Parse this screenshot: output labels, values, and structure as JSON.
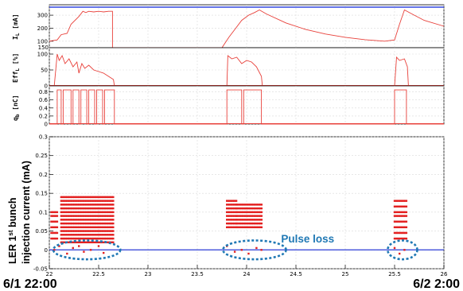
{
  "chart_data": [
    {
      "type": "line",
      "title": "",
      "ylabel": "I_L [mA]",
      "ylabel_main": "I",
      "ylabel_sub": "L",
      "ylabel_unit": " [mA]",
      "xlim": [
        22,
        26
      ],
      "ylim": [
        50,
        380
      ],
      "yticks": [
        100,
        200,
        300
      ],
      "ytick_labels": [
        "100",
        "200",
        "300"
      ],
      "bottom_label": "150",
      "series": [
        {
          "color": "#e8403a",
          "x": [
            22.0,
            22.08,
            22.12,
            22.18,
            22.22,
            22.3,
            22.34,
            22.37,
            22.4,
            22.45,
            22.5,
            22.55,
            22.6,
            22.64,
            22.64,
            22.8,
            23.0,
            23.5,
            23.75,
            23.82,
            23.88,
            23.95,
            24.02,
            24.08,
            24.13,
            24.2,
            24.4,
            24.6,
            24.8,
            25.0,
            25.2,
            25.4,
            25.5,
            25.55,
            25.6,
            25.7,
            25.8,
            26.0
          ],
          "y": [
            100,
            110,
            150,
            160,
            230,
            290,
            330,
            320,
            330,
            325,
            330,
            325,
            330,
            330,
            50,
            50,
            50,
            50,
            50,
            130,
            190,
            260,
            300,
            320,
            340,
            310,
            240,
            190,
            155,
            130,
            112,
            100,
            110,
            230,
            340,
            300,
            260,
            215
          ]
        }
      ]
    },
    {
      "type": "line",
      "title": "",
      "ylabel": "Eff_L [%]",
      "ylabel_main": "Eff",
      "ylabel_sub": "L",
      "ylabel_unit": " [%]",
      "xlim": [
        22,
        26
      ],
      "ylim": [
        0,
        120
      ],
      "yticks": [
        0,
        50,
        100
      ],
      "ytick_labels": [
        "0",
        "50",
        "100"
      ],
      "series": [
        {
          "color": "#e8403a",
          "x": [
            22.0,
            22.05,
            22.08,
            22.1,
            22.13,
            22.16,
            22.2,
            22.24,
            22.28,
            22.3,
            22.33,
            22.36,
            22.4,
            22.45,
            22.5,
            22.55,
            22.6,
            22.65,
            22.66,
            23.8,
            23.81,
            23.85,
            23.9,
            23.95,
            24.0,
            24.05,
            24.1,
            24.15,
            24.16,
            25.5,
            25.52,
            25.55,
            25.6,
            25.63,
            25.64,
            26.0
          ],
          "y": [
            0,
            0,
            100,
            80,
            95,
            70,
            85,
            60,
            75,
            40,
            70,
            55,
            65,
            50,
            45,
            40,
            30,
            20,
            0,
            0,
            95,
            85,
            90,
            70,
            80,
            75,
            60,
            30,
            0,
            0,
            90,
            80,
            85,
            60,
            0,
            0
          ]
        }
      ]
    },
    {
      "type": "line",
      "title": "",
      "ylabel": "q_b [nC]",
      "ylabel_main": "q",
      "ylabel_sub": "b",
      "ylabel_unit": " [nC]",
      "xlim": [
        22,
        26
      ],
      "ylim": [
        0,
        0.95
      ],
      "yticks": [
        0,
        0.2,
        0.4,
        0.6,
        0.8
      ],
      "ytick_labels": [
        "0",
        "0.2",
        "0.4",
        "0.6",
        "0.8"
      ],
      "series": [
        {
          "color": "#e8403a",
          "x": [
            22.0,
            22.08,
            22.08,
            22.12,
            22.12,
            22.14,
            22.14,
            22.22,
            22.22,
            22.24,
            22.24,
            22.3,
            22.3,
            22.32,
            22.32,
            22.38,
            22.38,
            22.4,
            22.4,
            22.46,
            22.46,
            22.48,
            22.48,
            22.54,
            22.54,
            22.56,
            22.56,
            22.66,
            22.66,
            23.8,
            23.8,
            23.95,
            23.95,
            23.97,
            23.97,
            24.15,
            24.15,
            25.5,
            25.5,
            25.62,
            25.62,
            26.0
          ],
          "y": [
            0,
            0,
            0.85,
            0.85,
            0,
            0,
            0.85,
            0.85,
            0,
            0,
            0.85,
            0.85,
            0,
            0,
            0.85,
            0.85,
            0,
            0,
            0.85,
            0.85,
            0,
            0,
            0.85,
            0.85,
            0,
            0,
            0.85,
            0.85,
            0,
            0,
            0.85,
            0.85,
            0,
            0,
            0.85,
            0.85,
            0,
            0,
            0.85,
            0.85,
            0,
            0
          ]
        }
      ]
    },
    {
      "type": "scatter",
      "title": "",
      "ylabel": "LER 1st bunch injection current (mA)",
      "ylabel_line1_main": "LER 1",
      "ylabel_line1_sup": "st",
      "ylabel_line1_rest": " bunch",
      "ylabel_line2": "injection current (mA)",
      "xlim": [
        22,
        26
      ],
      "ylim": [
        -0.05,
        0.3
      ],
      "xticks": [
        22,
        22.5,
        23,
        23.5,
        24,
        24.5,
        25,
        25.5,
        26
      ],
      "xtick_labels": [
        "22",
        "22.5",
        "23",
        "23.5",
        "24",
        "24.5",
        "25",
        "25.5",
        "26"
      ],
      "yticks": [
        -0.05,
        0,
        0.05,
        0.1,
        0.15,
        0.2,
        0.25,
        0.3
      ],
      "ytick_labels": [
        "-0.05",
        "0",
        "0.05",
        "0.1",
        "0.15",
        "0.2",
        "0.25",
        "0.3"
      ],
      "baseline": {
        "y": 0,
        "color": "#2b3bd6"
      },
      "clusters": [
        {
          "x0": 22.02,
          "x1": 22.08,
          "levels": [
            0.03,
            0.045,
            0.06,
            0.075,
            0.09,
            0.1
          ]
        },
        {
          "x0": 22.12,
          "x1": 22.65,
          "levels": [
            0.02,
            0.03,
            0.04,
            0.05,
            0.06,
            0.07,
            0.08,
            0.09,
            0.1,
            0.11,
            0.12,
            0.13,
            0.14
          ]
        },
        {
          "x0": 23.8,
          "x1": 23.9,
          "levels": [
            0.06,
            0.07,
            0.08,
            0.09,
            0.1,
            0.11,
            0.12,
            0.13
          ]
        },
        {
          "x0": 23.9,
          "x1": 24.16,
          "levels": [
            0.06,
            0.07,
            0.08,
            0.09,
            0.1,
            0.11,
            0.12
          ]
        },
        {
          "x0": 25.5,
          "x1": 25.62,
          "levels": [
            0.03,
            0.045,
            0.06,
            0.075,
            0.09,
            0.1,
            0.115,
            0.13
          ]
        }
      ],
      "near_zero_points": {
        "x": [
          22.05,
          22.1,
          22.18,
          22.24,
          22.3,
          22.35,
          22.42,
          22.5,
          22.55,
          23.8,
          23.88,
          23.95,
          24.02,
          24.1,
          24.15,
          25.5,
          25.55,
          25.6
        ],
        "y": [
          0.0,
          0.01,
          -0.01,
          0.005,
          0.01,
          -0.005,
          0.0,
          0.01,
          -0.008,
          0.01,
          -0.005,
          0.0,
          -0.01,
          0.005,
          0.0,
          0.005,
          -0.01,
          0.0
        ]
      },
      "marker_color": "#e32020",
      "ellipse_color": "#1f78b4",
      "ellipses": [
        {
          "cx": 22.38,
          "cy": 0.0,
          "rx": 0.34,
          "ry": 0.025
        },
        {
          "cx": 24.08,
          "cy": 0.0,
          "rx": 0.32,
          "ry": 0.025
        },
        {
          "cx": 25.58,
          "cy": 0.0,
          "rx": 0.15,
          "ry": 0.025
        }
      ],
      "annotation": {
        "text": "Pulse loss",
        "x": 24.35,
        "y": 0.02
      }
    }
  ],
  "corner_labels": {
    "left": "6/1 22:00",
    "right": "6/2 2:00"
  }
}
